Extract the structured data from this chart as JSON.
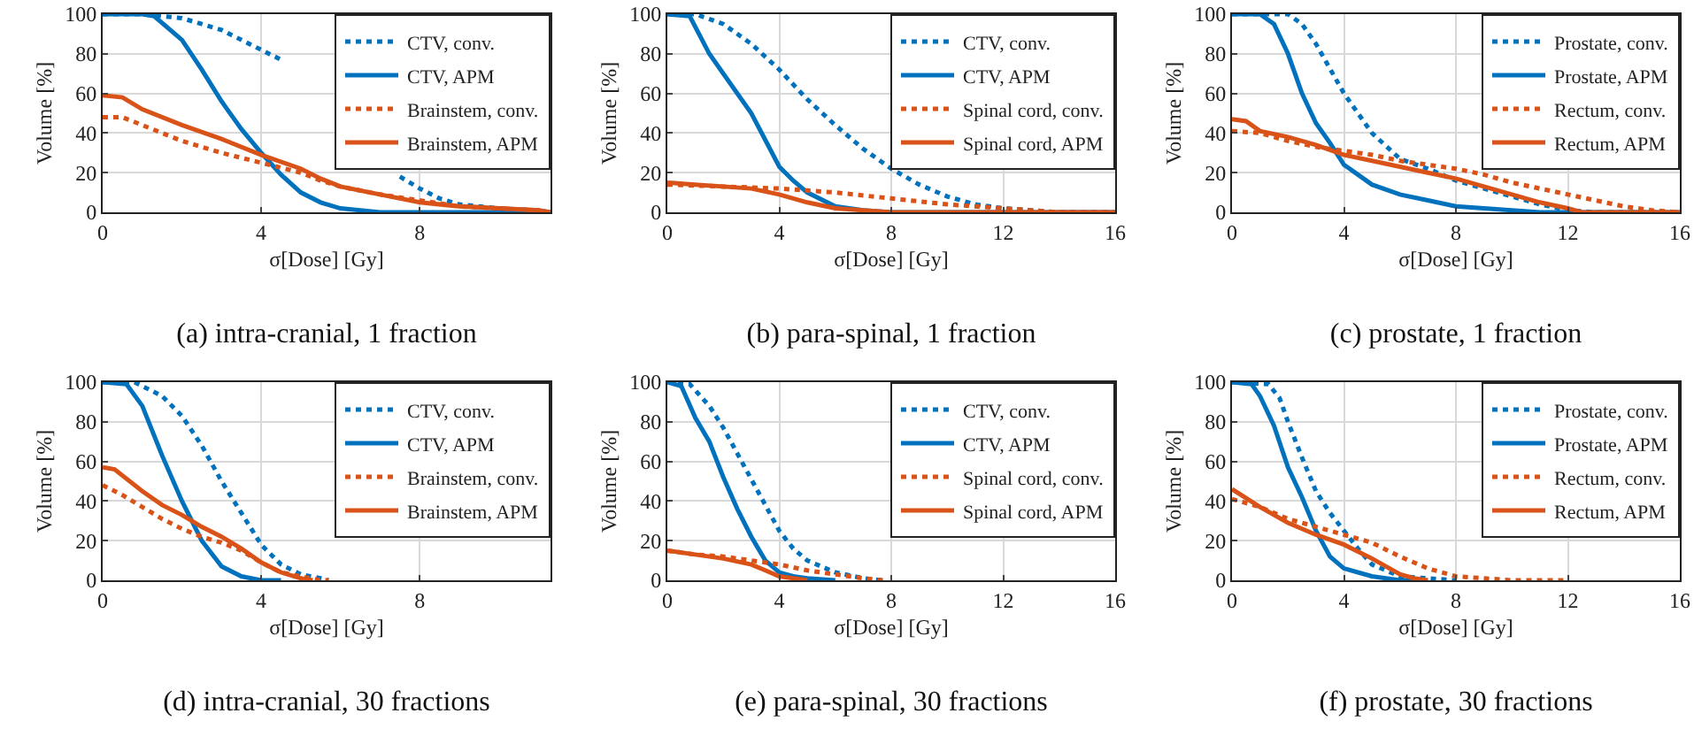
{
  "chart_data": [
    {
      "type": "line",
      "title": "(a) intra-cranial, 1 fraction",
      "xlabel": "σ[Dose] [Gy]",
      "ylabel": "Volume [%]",
      "xlim": [
        0,
        11.3
      ],
      "xticks": [
        0,
        4,
        8
      ],
      "ylim": [
        0,
        100
      ],
      "yticks": [
        0,
        20,
        40,
        60,
        80,
        100
      ],
      "grid": true,
      "legend": "top right",
      "series": [
        {
          "name": "CTV, conv.",
          "color": "#0072bd",
          "line_style": "dotted",
          "x": [
            0,
            1,
            2,
            3,
            4,
            4.5,
            5,
            5.5,
            6,
            6.5,
            7,
            7.5,
            8,
            8.5,
            9,
            10,
            11,
            11.3
          ],
          "values": [
            100,
            100,
            98,
            92,
            82,
            77,
            null,
            null,
            null,
            null,
            null,
            18,
            12,
            7,
            4,
            2,
            1,
            0
          ]
        },
        {
          "name": "CTV, APM",
          "color": "#0072bd",
          "line_style": "solid",
          "x": [
            0,
            1,
            1.3,
            2,
            2.5,
            3,
            3.5,
            4,
            4.5,
            5,
            5.5,
            6,
            6.5,
            7,
            11.3
          ],
          "values": [
            100,
            100,
            99,
            87,
            72,
            56,
            42,
            30,
            19,
            10,
            5,
            2,
            1,
            0,
            0
          ]
        },
        {
          "name": "Brainstem, conv.",
          "color": "#d95319",
          "line_style": "dotted",
          "x": [
            0,
            0.5,
            1,
            2,
            3,
            4,
            5,
            5.5,
            6,
            7,
            8,
            9,
            10,
            11,
            11.3
          ],
          "values": [
            48,
            48,
            44,
            36,
            30,
            25,
            20,
            16,
            13,
            9,
            6,
            3,
            2,
            1,
            0
          ]
        },
        {
          "name": "Brainstem, APM",
          "color": "#d95319",
          "line_style": "solid",
          "x": [
            0,
            0.5,
            1,
            2,
            3,
            4,
            5,
            5.5,
            6,
            7,
            8,
            9,
            10,
            11,
            11.3
          ],
          "values": [
            59,
            58,
            52,
            44,
            37,
            29,
            22,
            17,
            13,
            9,
            5,
            3,
            2,
            1,
            0
          ]
        }
      ]
    },
    {
      "type": "line",
      "title": "(b) para-spinal, 1 fraction",
      "xlabel": "σ[Dose] [Gy]",
      "ylabel": "Volume [%]",
      "xlim": [
        0,
        16
      ],
      "xticks": [
        0,
        4,
        8,
        12,
        16
      ],
      "ylim": [
        0,
        100
      ],
      "yticks": [
        0,
        20,
        40,
        60,
        80,
        100
      ],
      "grid": true,
      "legend": "top right",
      "series": [
        {
          "name": "CTV, conv.",
          "color": "#0072bd",
          "line_style": "dotted",
          "x": [
            0,
            1,
            2,
            3,
            4,
            5,
            6,
            7,
            8,
            9,
            10,
            11,
            12,
            13,
            14,
            16
          ],
          "values": [
            100,
            100,
            95,
            85,
            72,
            57,
            44,
            32,
            22,
            14,
            8,
            4,
            2,
            1,
            0,
            0
          ]
        },
        {
          "name": "CTV, APM",
          "color": "#0072bd",
          "line_style": "solid",
          "x": [
            0,
            0.8,
            1.5,
            2,
            3,
            4,
            4.5,
            5,
            6,
            7,
            8,
            16
          ],
          "values": [
            100,
            99,
            80,
            70,
            50,
            23,
            16,
            10,
            3,
            1,
            0,
            0
          ]
        },
        {
          "name": "Spinal cord, conv.",
          "color": "#d95319",
          "line_style": "dotted",
          "x": [
            0,
            2,
            4,
            5,
            6,
            8,
            10,
            12,
            13,
            14,
            16
          ],
          "values": [
            14,
            13,
            12,
            11,
            10,
            7,
            4,
            2,
            1,
            0,
            0
          ]
        },
        {
          "name": "Spinal cord, APM",
          "color": "#d95319",
          "line_style": "solid",
          "x": [
            0,
            1,
            2,
            3,
            4,
            5,
            6,
            7,
            8,
            16
          ],
          "values": [
            15,
            14,
            13,
            12,
            9,
            5,
            2,
            1,
            0,
            0
          ]
        }
      ]
    },
    {
      "type": "line",
      "title": "(c) prostate, 1 fraction",
      "xlabel": "σ[Dose] [Gy]",
      "ylabel": "Volume [%]",
      "xlim": [
        0,
        16
      ],
      "xticks": [
        0,
        4,
        8,
        12,
        16
      ],
      "ylim": [
        0,
        100
      ],
      "yticks": [
        0,
        20,
        40,
        60,
        80,
        100
      ],
      "grid": true,
      "legend": "top right",
      "series": [
        {
          "name": "Prostate, conv.",
          "color": "#0072bd",
          "line_style": "dotted",
          "x": [
            0,
            2,
            2.5,
            3,
            4,
            5,
            6,
            7,
            8,
            9,
            10,
            11,
            12,
            13,
            16
          ],
          "values": [
            100,
            100,
            95,
            85,
            60,
            40,
            27,
            22,
            16,
            12,
            8,
            4,
            1,
            0,
            0
          ]
        },
        {
          "name": "Prostate, APM",
          "color": "#0072bd",
          "line_style": "solid",
          "x": [
            0,
            1,
            1.5,
            2,
            2.5,
            3,
            3.5,
            4,
            5,
            6,
            7,
            8,
            9,
            10,
            11,
            16
          ],
          "values": [
            100,
            100,
            95,
            80,
            60,
            45,
            35,
            24,
            14,
            9,
            6,
            3,
            2,
            1,
            0,
            0
          ]
        },
        {
          "name": "Rectum, conv.",
          "color": "#d95319",
          "line_style": "dotted",
          "x": [
            0,
            1,
            2,
            3,
            4,
            5,
            6,
            7,
            8,
            9,
            10,
            11,
            12,
            13,
            14,
            15,
            16
          ],
          "values": [
            41,
            40,
            36,
            33,
            31,
            29,
            26,
            24,
            22,
            19,
            15,
            12,
            9,
            6,
            3,
            1,
            0
          ]
        },
        {
          "name": "Rectum, APM",
          "color": "#d95319",
          "line_style": "solid",
          "x": [
            0,
            0.5,
            1,
            2,
            3,
            4,
            5,
            6,
            7,
            8,
            9,
            10,
            11,
            12,
            12.5,
            16
          ],
          "values": [
            47,
            46,
            41,
            38,
            34,
            29,
            26,
            23,
            20,
            17,
            13,
            9,
            5,
            2,
            0,
            0
          ]
        }
      ]
    },
    {
      "type": "line",
      "title": "(d) intra-cranial, 30 fractions",
      "xlabel": "σ[Dose] [Gy]",
      "ylabel": "Volume [%]",
      "xlim": [
        0,
        11.3
      ],
      "xticks": [
        0,
        4,
        8
      ],
      "ylim": [
        0,
        100
      ],
      "yticks": [
        0,
        20,
        40,
        60,
        80,
        100
      ],
      "grid": true,
      "legend": "top right",
      "series": [
        {
          "name": "CTV, conv.",
          "color": "#0072bd",
          "line_style": "dotted",
          "x": [
            0,
            0.8,
            1,
            1.5,
            2,
            2.5,
            3,
            3.5,
            4,
            4.5,
            5,
            5.5,
            5.7
          ],
          "values": [
            100,
            100,
            98,
            93,
            83,
            68,
            50,
            34,
            18,
            8,
            3,
            1,
            0
          ]
        },
        {
          "name": "CTV, APM",
          "color": "#0072bd",
          "line_style": "solid",
          "x": [
            0,
            0.6,
            1,
            1.5,
            2,
            2.5,
            3,
            3.5,
            4,
            4.5
          ],
          "values": [
            100,
            99,
            88,
            63,
            40,
            20,
            7,
            2,
            0,
            0
          ]
        },
        {
          "name": "Brainstem, conv.",
          "color": "#d95319",
          "line_style": "dotted",
          "x": [
            0,
            0.5,
            1,
            1.5,
            2,
            2.5,
            3,
            3.5,
            4,
            4.5,
            5,
            5.5,
            5.7
          ],
          "values": [
            48,
            43,
            37,
            31,
            26,
            22,
            19,
            15,
            9,
            4,
            2,
            0,
            0
          ]
        },
        {
          "name": "Brainstem, APM",
          "color": "#d95319",
          "line_style": "solid",
          "x": [
            0,
            0.3,
            1,
            1.5,
            2,
            2.5,
            3,
            3.5,
            4,
            4.5,
            5,
            5.3
          ],
          "values": [
            57,
            56,
            45,
            38,
            33,
            27,
            22,
            16,
            9,
            4,
            1,
            0
          ]
        }
      ]
    },
    {
      "type": "line",
      "title": "(e) para-spinal, 30 fractions",
      "xlabel": "σ[Dose] [Gy]",
      "ylabel": "Volume [%]",
      "xlim": [
        0,
        16
      ],
      "xticks": [
        0,
        4,
        8,
        12,
        16
      ],
      "ylim": [
        0,
        100
      ],
      "yticks": [
        0,
        20,
        40,
        60,
        80,
        100
      ],
      "grid": true,
      "legend": "top right",
      "series": [
        {
          "name": "CTV, conv.",
          "color": "#0072bd",
          "line_style": "dotted",
          "x": [
            0,
            0.8,
            1.5,
            2,
            2.5,
            3,
            4,
            4.5,
            5,
            6,
            7,
            7.7
          ],
          "values": [
            100,
            99,
            88,
            77,
            64,
            51,
            25,
            16,
            10,
            4,
            1,
            0
          ]
        },
        {
          "name": "CTV, APM",
          "color": "#0072bd",
          "line_style": "solid",
          "x": [
            0,
            0.5,
            1,
            1.5,
            2,
            2.5,
            3,
            3.5,
            4,
            4.5,
            5,
            6
          ],
          "values": [
            100,
            98,
            82,
            70,
            52,
            36,
            22,
            10,
            4,
            2,
            1,
            0
          ]
        },
        {
          "name": "Spinal cord, conv.",
          "color": "#d95319",
          "line_style": "dotted",
          "x": [
            0,
            1,
            2,
            3,
            4,
            5,
            6,
            7,
            7.7
          ],
          "values": [
            15,
            13,
            12,
            10,
            8,
            5,
            3,
            1,
            0
          ]
        },
        {
          "name": "Spinal cord, APM",
          "color": "#d95319",
          "line_style": "solid",
          "x": [
            0,
            1,
            2,
            3,
            3.5,
            4,
            4.5,
            5
          ],
          "values": [
            15,
            13,
            11,
            8,
            5,
            2,
            1,
            0
          ]
        }
      ]
    },
    {
      "type": "line",
      "title": "(f) prostate, 30 fractions",
      "xlabel": "σ[Dose] [Gy]",
      "ylabel": "Volume [%]",
      "xlim": [
        0,
        16
      ],
      "xticks": [
        0,
        4,
        8,
        12,
        16
      ],
      "ylim": [
        0,
        100
      ],
      "yticks": [
        0,
        20,
        40,
        60,
        80,
        100
      ],
      "grid": true,
      "legend": "top right",
      "series": [
        {
          "name": "Prostate, conv.",
          "color": "#0072bd",
          "line_style": "dotted",
          "x": [
            0,
            1.3,
            1.7,
            2,
            2.5,
            3,
            3.5,
            4,
            4.5,
            5,
            6,
            7,
            8
          ],
          "values": [
            100,
            99,
            92,
            80,
            62,
            45,
            34,
            25,
            16,
            8,
            2,
            1,
            0
          ]
        },
        {
          "name": "Prostate, APM",
          "color": "#0072bd",
          "line_style": "solid",
          "x": [
            0,
            0.7,
            1,
            1.5,
            2,
            2.5,
            3,
            3.5,
            4,
            5,
            6,
            6.5
          ],
          "values": [
            100,
            99,
            93,
            78,
            57,
            42,
            25,
            12,
            6,
            2,
            0,
            0
          ]
        },
        {
          "name": "Rectum, conv.",
          "color": "#d95319",
          "line_style": "dotted",
          "x": [
            0,
            1,
            2,
            3,
            4,
            5,
            6,
            7,
            8,
            9,
            10,
            12
          ],
          "values": [
            41,
            37,
            31,
            27,
            23,
            19,
            12,
            6,
            2,
            1,
            0,
            0
          ]
        },
        {
          "name": "Rectum, APM",
          "color": "#d95319",
          "line_style": "solid",
          "x": [
            0,
            1,
            2,
            3,
            4,
            5,
            6,
            6.5,
            7
          ],
          "values": [
            46,
            37,
            29,
            23,
            18,
            11,
            3,
            1,
            0
          ]
        }
      ]
    }
  ]
}
